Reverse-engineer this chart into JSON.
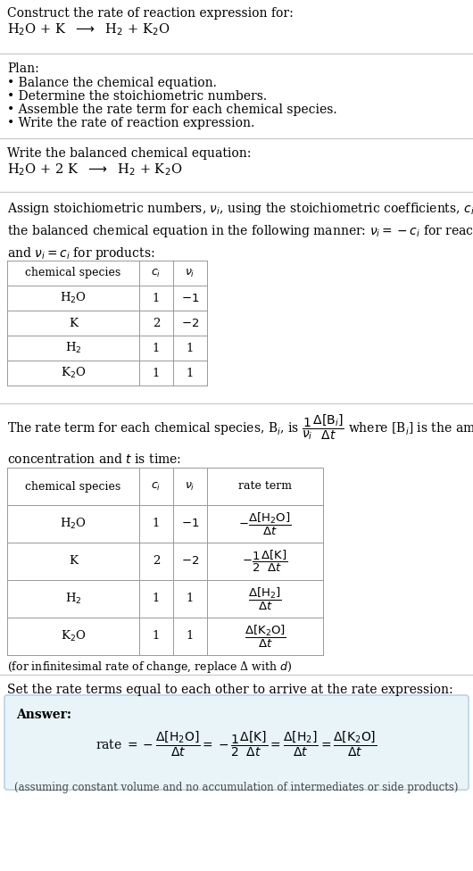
{
  "bg_color": "#ffffff",
  "text_color": "#000000",
  "gray_text": "#444444",
  "title_line1": "Construct the rate of reaction expression for:",
  "title_line2": "H$_2$O + K  $\\longrightarrow$  H$_2$ + K$_2$O",
  "plan_header": "Plan:",
  "plan_items": [
    "• Balance the chemical equation.",
    "• Determine the stoichiometric numbers.",
    "• Assemble the rate term for each chemical species.",
    "• Write the rate of reaction expression."
  ],
  "balanced_header": "Write the balanced chemical equation:",
  "balanced_eq": "H$_2$O + 2 K  $\\longrightarrow$  H$_2$ + K$_2$O",
  "table1_headers": [
    "chemical species",
    "$c_i$",
    "$\\nu_i$"
  ],
  "table1_rows": [
    [
      "H$_2$O",
      "1",
      "$-1$"
    ],
    [
      "K",
      "2",
      "$-2$"
    ],
    [
      "H$_2$",
      "1",
      "1"
    ],
    [
      "K$_2$O",
      "1",
      "1"
    ]
  ],
  "table2_headers": [
    "chemical species",
    "$c_i$",
    "$\\nu_i$",
    "rate term"
  ],
  "table2_rows": [
    [
      "H$_2$O",
      "1",
      "$-1$",
      "$-\\dfrac{\\Delta[\\mathrm{H_2O}]}{\\Delta t}$"
    ],
    [
      "K",
      "2",
      "$-2$",
      "$-\\dfrac{1}{2}\\dfrac{\\Delta[\\mathrm{K}]}{\\Delta t}$"
    ],
    [
      "H$_2$",
      "1",
      "1",
      "$\\dfrac{\\Delta[\\mathrm{H_2}]}{\\Delta t}$"
    ],
    [
      "K$_2$O",
      "1",
      "1",
      "$\\dfrac{\\Delta[\\mathrm{K_2O}]}{\\Delta t}$"
    ]
  ],
  "infinitesimal_note": "(for infinitesimal rate of change, replace Δ with $d$)",
  "set_equal_text": "Set the rate terms equal to each other to arrive at the rate expression:",
  "answer_label": "Answer:",
  "answer_box_color": "#e8f4f8",
  "answer_box_border": "#b8d4e8",
  "assuming_note": "(assuming constant volume and no accumulation of intermediates or side products)"
}
